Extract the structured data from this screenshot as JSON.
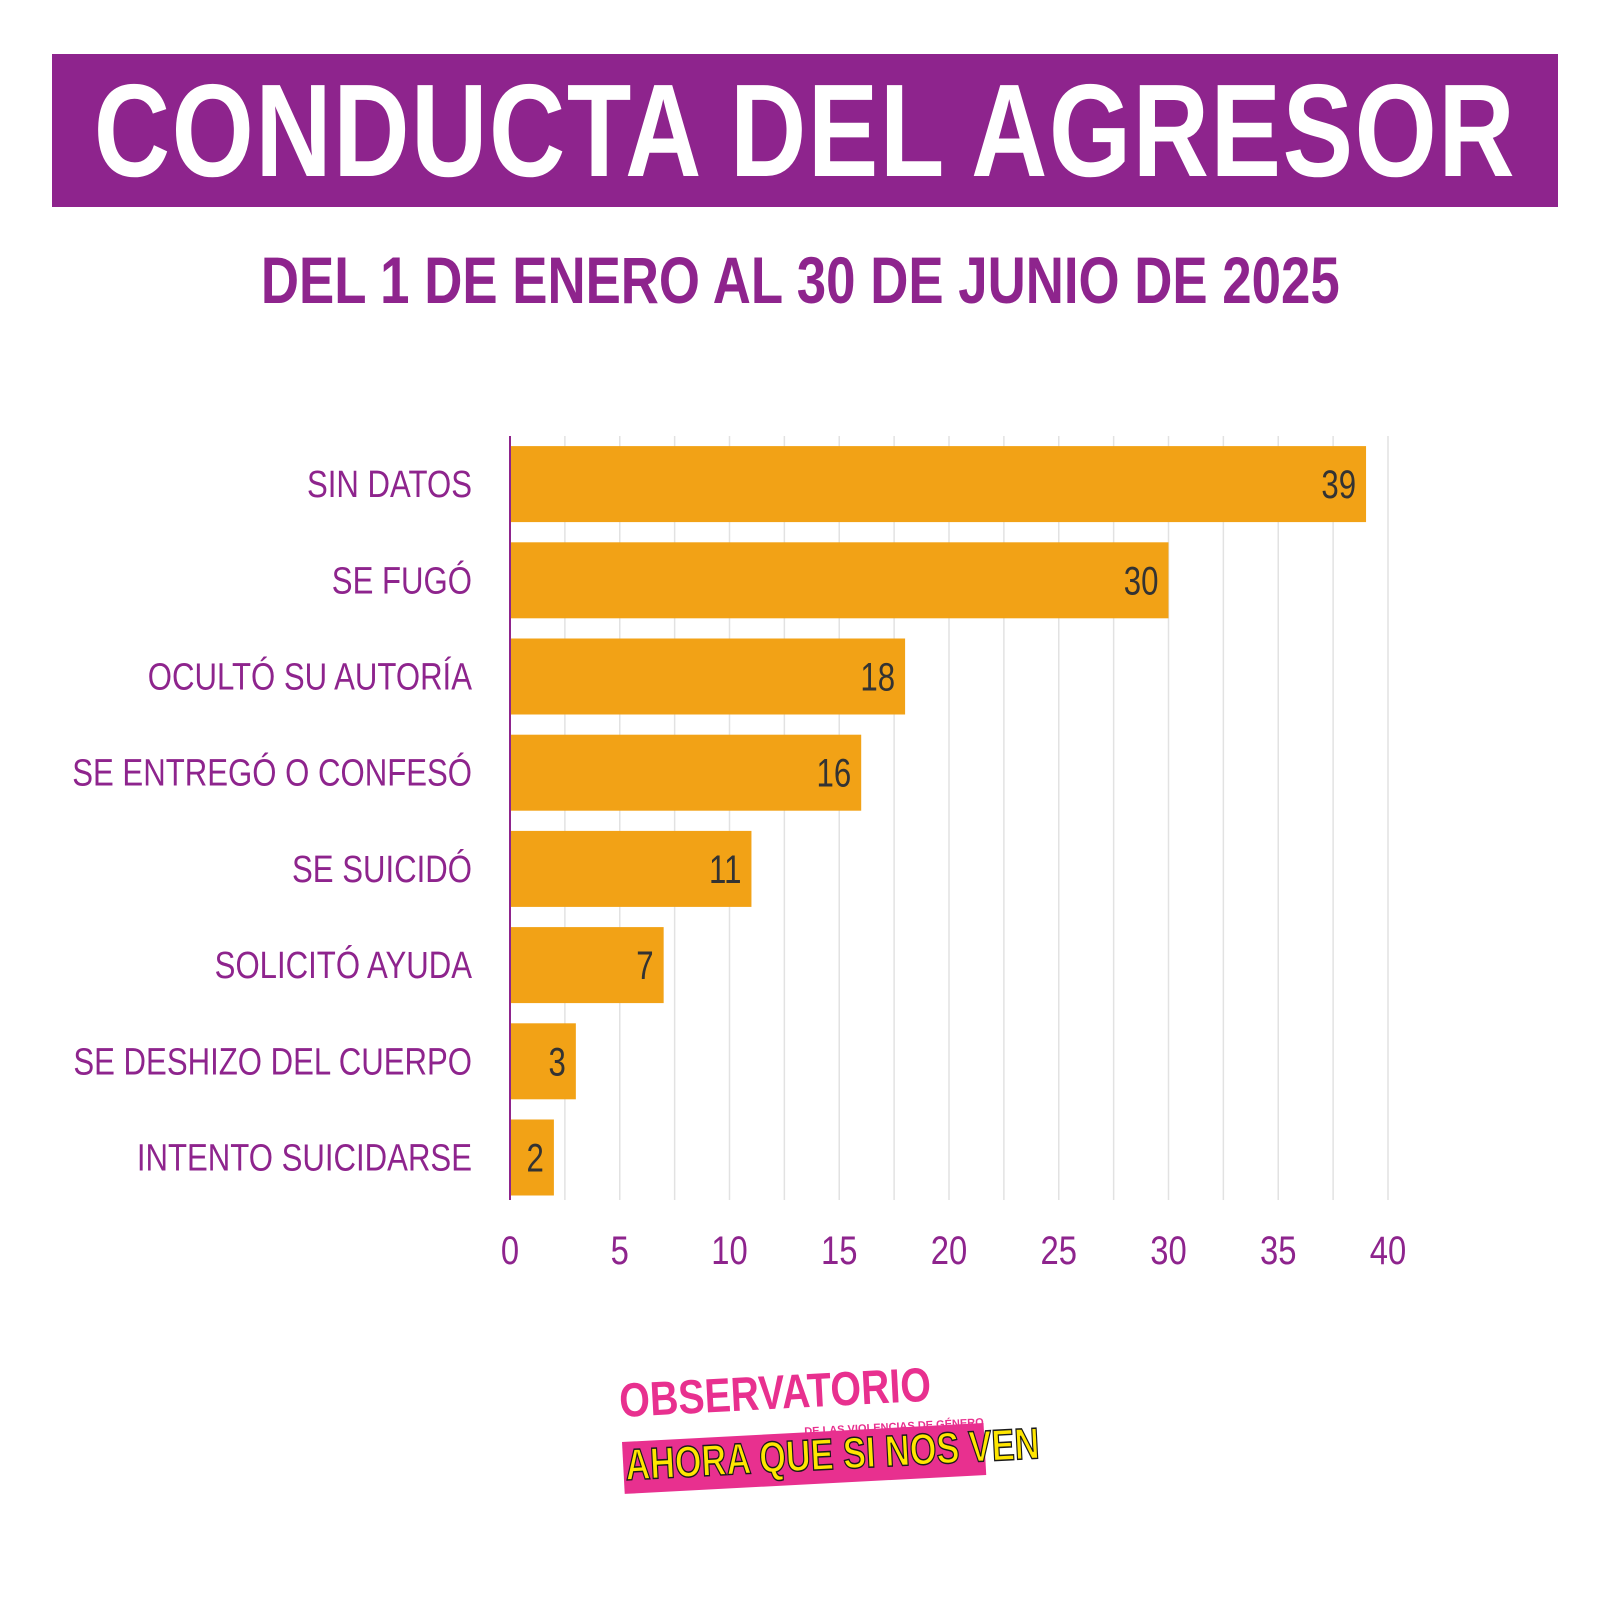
{
  "title": "CONDUCTA DEL AGRESOR",
  "subtitle": "DEL 1 DE ENERO AL 30 DE JUNIO DE 2025",
  "colors": {
    "accent_purple": "#8e248d",
    "bar_orange": "#f2a216",
    "grid": "#e2e2e2",
    "value_label": "#333333",
    "logo_pink": "#e8308f",
    "logo_yellow": "#ffe600"
  },
  "chart_data": {
    "type": "bar",
    "orientation": "horizontal",
    "title": "CONDUCTA DEL AGRESOR",
    "subtitle": "DEL 1 DE ENERO AL 30 DE JUNIO DE 2025",
    "categories": [
      "SIN DATOS",
      "SE FUGÓ",
      "OCULTÓ SU AUTORÍA",
      "SE ENTREGÓ O CONFESÓ",
      "SE SUICIDÓ",
      "SOLICITÓ AYUDA",
      "SE DESHIZO DEL CUERPO",
      "INTENTO SUICIDARSE"
    ],
    "values": [
      39,
      30,
      18,
      16,
      11,
      7,
      3,
      2
    ],
    "xlim": [
      0,
      40
    ],
    "xticks": [
      0,
      5,
      10,
      15,
      20,
      25,
      30,
      35,
      40
    ],
    "xlabel": "",
    "ylabel": "",
    "grid": true,
    "data_labels": true
  },
  "logo": {
    "line1": "OBSERVATORIO",
    "line2": "DE LAS VIOLENCIAS DE GÉNERO",
    "line3": "AHORA QUE SI NOS VEN"
  }
}
